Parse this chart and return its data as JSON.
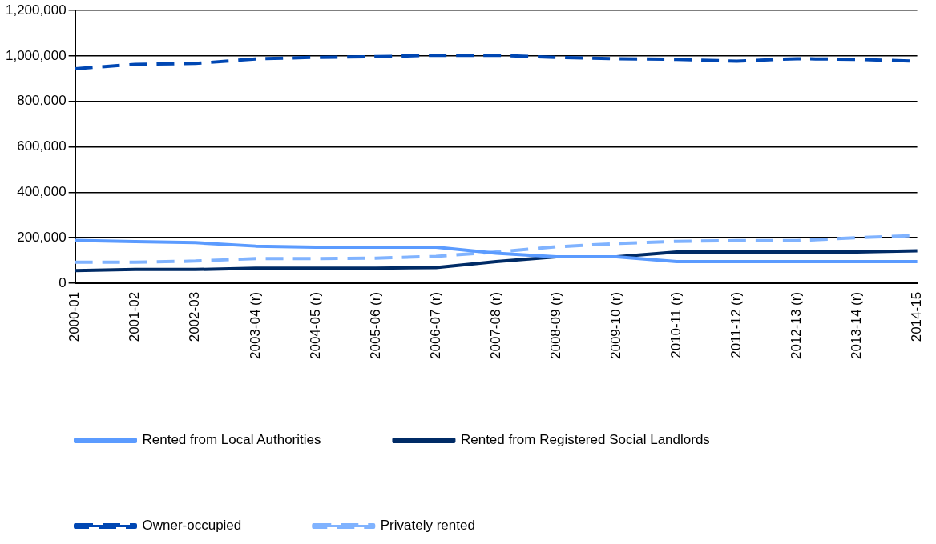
{
  "chart_data": {
    "type": "line",
    "categories": [
      "2000-01",
      "2001-02",
      "2002-03",
      "2003-04 (r)",
      "2004-05 (r)",
      "2005-06 (r)",
      "2006-07 (r)",
      "2007-08 (r)",
      "2008-09 (r)",
      "2009-10 (r)",
      "2010-11 (r)",
      "2011-12 (r)",
      "2012-13 (r)",
      "2013-14 (r)",
      "2014-15"
    ],
    "series": [
      {
        "name": "Rented from Local Authorities",
        "color": "#5b9bff",
        "line_style": "solid",
        "values": [
          188000,
          183000,
          178000,
          163000,
          158000,
          158000,
          158000,
          132000,
          116000,
          116000,
          95000,
          95000,
          95000,
          95000,
          95000
        ]
      },
      {
        "name": "Rented from Registered Social Landlords",
        "color": "#002b66",
        "line_style": "solid",
        "values": [
          55000,
          60000,
          60000,
          66000,
          66000,
          66000,
          68000,
          95000,
          116000,
          116000,
          137000,
          137000,
          137000,
          137000,
          142000
        ]
      },
      {
        "name": "Owner-occupied",
        "color": "#0047b3",
        "line_style": "dashed",
        "values": [
          944000,
          963000,
          967000,
          987000,
          994000,
          997000,
          1003000,
          1003000,
          994000,
          988000,
          985000,
          977000,
          988000,
          985000,
          977000
        ]
      },
      {
        "name": "Privately rented",
        "color": "#80b3ff",
        "line_style": "dashed",
        "values": [
          92000,
          92000,
          97000,
          108000,
          108000,
          110000,
          118000,
          137000,
          160000,
          174000,
          184000,
          187000,
          187000,
          200000,
          210000
        ]
      }
    ],
    "ylim": [
      0,
      1200000
    ],
    "yticks": [
      {
        "value": 0,
        "label": "0"
      },
      {
        "value": 200000,
        "label": "200,000"
      },
      {
        "value": 400000,
        "label": "400,000"
      },
      {
        "value": 600000,
        "label": "600,000"
      },
      {
        "value": 800000,
        "label": "800,000"
      },
      {
        "value": 1000000,
        "label": "1,000,000"
      },
      {
        "value": 1200000,
        "label": "1,200,000"
      }
    ],
    "grid": "y",
    "legend": "bottom",
    "marker": "none"
  }
}
